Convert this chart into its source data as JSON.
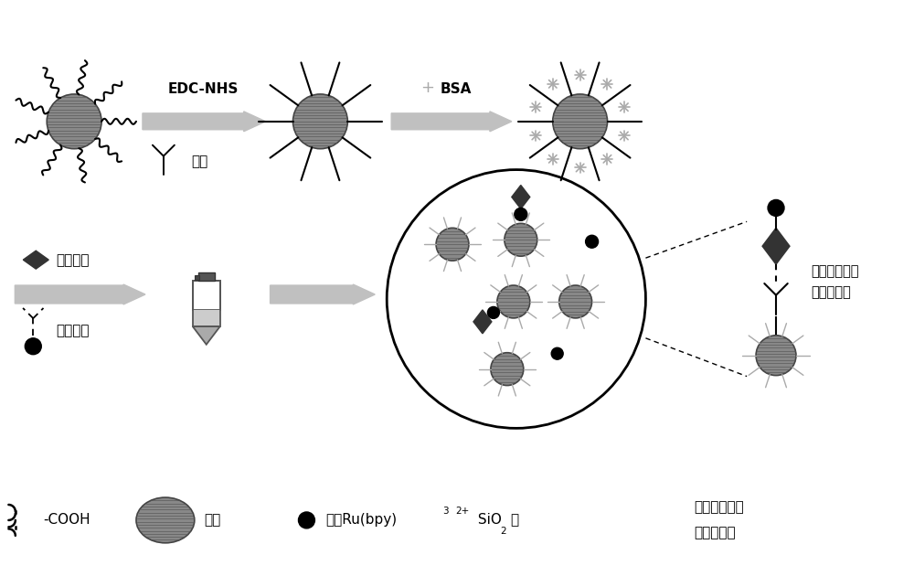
{
  "bg_color": "#ffffff",
  "gray_bead": "#888888",
  "bead_hatch_color": "#666666",
  "arrow_color": "#c0c0c0",
  "bsa_star_color": "#aaaaaa",
  "black": "#000000",
  "dark_diamond": "#333333",
  "figsize": [
    10.0,
    6.42
  ],
  "dpi": 100,
  "edc_nhs": "EDC-NHS",
  "yi_kang": "一抗",
  "bsa": "BSA",
  "plus_bsa": "+",
  "dai_ce": "待测蛋白",
  "ru_biao": "馒标二抗",
  "cooh_label": "-COOH",
  "wei_zhu_label": "微珠",
  "fu_zai_label": "负载Ru(bpy)",
  "fu_zai_sup": "2+",
  "fu_zai_label2": " SiO",
  "fu_zai_sub": "2",
  "fu_zai_label3": "球",
  "dan_ge_1": "单个免疫复合",
  "dan_ge_2": "物修饰微珠"
}
